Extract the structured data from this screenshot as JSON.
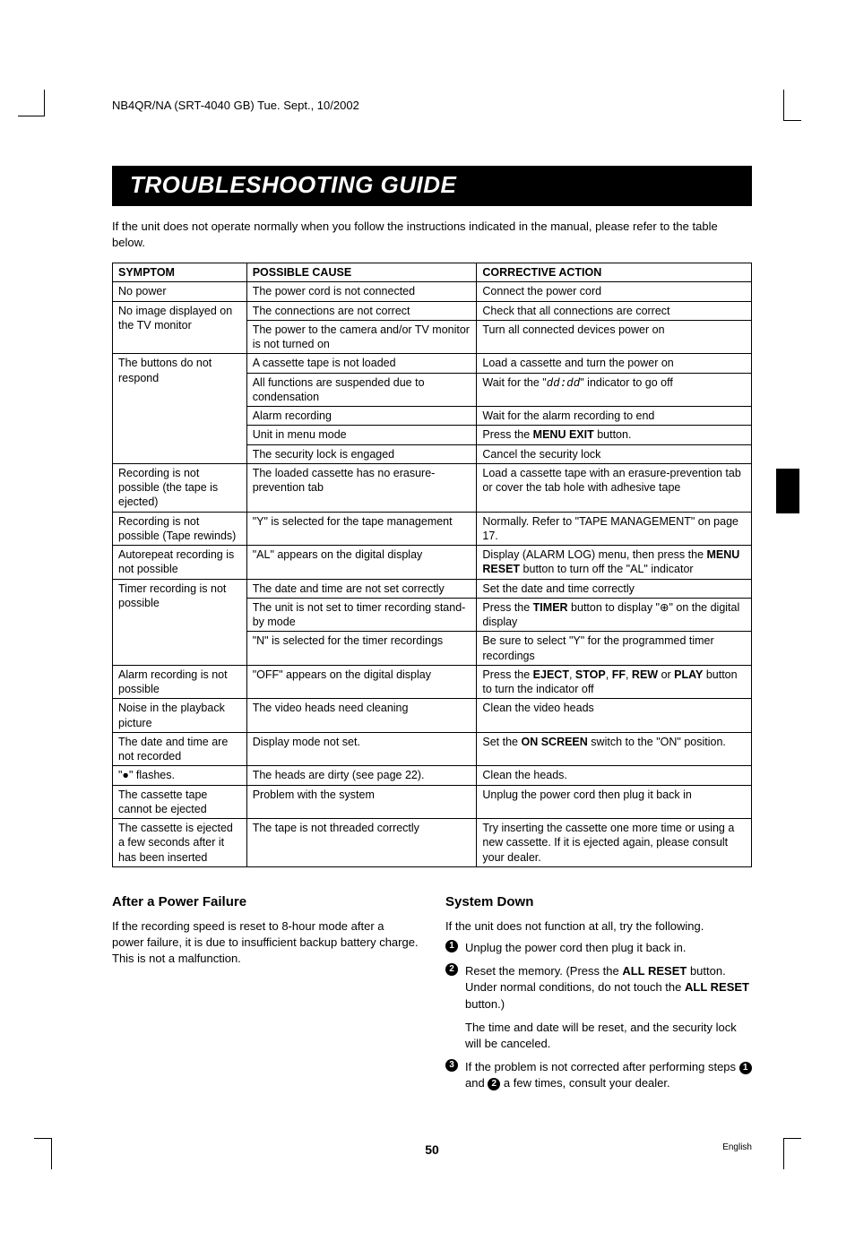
{
  "header_code": "NB4QR/NA (SRT-4040 GB)    Tue. Sept., 10/2002",
  "title": "TROUBLESHOOTING GUIDE",
  "intro": "If the unit does not operate normally when you follow the instructions indicated in the manual, please refer to the table below.",
  "table": {
    "headers": [
      "SYMPTOM",
      "POSSIBLE CAUSE",
      "CORRECTIVE ACTION"
    ],
    "groups": [
      {
        "symptom": "No power",
        "rows": [
          {
            "cause": "The power cord is not connected",
            "action": "Connect the power cord"
          }
        ]
      },
      {
        "symptom": "No image displayed on the TV monitor",
        "rows": [
          {
            "cause": "The connections are not correct",
            "action": "Check that all connections are correct"
          },
          {
            "cause": "The power to the camera and/or TV monitor is not turned on",
            "action": "Turn all connected devices power on"
          }
        ]
      },
      {
        "symptom": "The buttons do not respond",
        "rows": [
          {
            "cause": "A cassette tape is not loaded",
            "action": "Load a cassette and turn the power on"
          },
          {
            "cause": "All functions are suspended due to condensation",
            "action_html": "Wait for the \"<span class='clock-icon'>dd:dd</span>\" indicator to go off"
          },
          {
            "cause": "Alarm recording",
            "action": "Wait for the alarm recording to end"
          },
          {
            "cause": "Unit in menu mode",
            "action_html": "Press the <b>MENU EXIT</b> button."
          },
          {
            "cause": "The security lock is engaged",
            "action": "Cancel the security lock"
          }
        ]
      },
      {
        "symptom": "Recording is not possible (the tape is ejected)",
        "rows": [
          {
            "cause": "The loaded cassette has no erasure-prevention tab",
            "action": "Load a cassette tape with an erasure-prevention tab or cover the tab hole with adhesive tape"
          }
        ]
      },
      {
        "symptom": "Recording is not possible (Tape rewinds)",
        "rows": [
          {
            "cause": "\"Y\" is selected for the tape management",
            "action": "Normally. Refer to \"TAPE MANAGEMENT\" on page 17."
          }
        ]
      },
      {
        "symptom": "Autorepeat recording is not possible",
        "rows": [
          {
            "cause": "\"AL\" appears on the digital display",
            "action_html": "Display (ALARM LOG) menu, then press the <b>MENU RESET</b> button to turn off the \"AL\" indicator"
          }
        ]
      },
      {
        "symptom": "Timer recording is not possible",
        "rows": [
          {
            "cause": "The date and time are not set correctly",
            "action": "Set the date and time correctly"
          },
          {
            "cause": "The unit is not set to timer recording stand-by mode",
            "action_html": "Press the <b>TIMER</b> button to display \"⊕\" on the digital display"
          },
          {
            "cause": "\"N\" is selected for the timer recordings",
            "action": "Be sure to select \"Y\" for the programmed timer recordings"
          }
        ]
      },
      {
        "symptom": "Alarm recording is not possible",
        "rows": [
          {
            "cause": "\"OFF\" appears on the digital display",
            "action_html": "Press the <b>EJECT</b>, <b>STOP</b>, <b>FF</b>, <b>REW</b> or <b>PLAY</b> button to turn the indicator off"
          }
        ]
      },
      {
        "symptom": "Noise in the playback picture",
        "rows": [
          {
            "cause": "The video heads need cleaning",
            "action": "Clean the video heads"
          }
        ]
      },
      {
        "symptom": "The date and time are not recorded",
        "rows": [
          {
            "cause": "Display mode not set.",
            "action_html": "Set the <b>ON SCREEN</b> switch to the \"ON\" position."
          }
        ]
      },
      {
        "symptom": "\"●\" flashes.",
        "rows": [
          {
            "cause": "The heads are dirty (see page 22).",
            "action": "Clean the heads."
          }
        ]
      },
      {
        "symptom": "The cassette tape cannot be ejected",
        "rows": [
          {
            "cause": "Problem with the system",
            "action": "Unplug the power cord then plug it back in"
          }
        ]
      },
      {
        "symptom": "The cassette is ejected a few seconds after it has been inserted",
        "rows": [
          {
            "cause": "The tape is not threaded correctly",
            "action": "Try inserting the cassette one more time or using a new cassette. If it is ejected again, please consult your dealer."
          }
        ]
      }
    ]
  },
  "after_power": {
    "heading": "After a Power Failure",
    "body": "If the recording speed is reset to 8-hour mode after a power failure, it is due to insufficient backup battery charge. This is not a malfunction."
  },
  "system_down": {
    "heading": "System Down",
    "intro": "If the unit does not function at all, try the following.",
    "step1": "Unplug the power cord then plug it back in.",
    "step2_html": "Reset the memory. (Press the <b>ALL RESET</b> button. Under normal conditions, do not touch the <b>ALL RESET</b> button.)",
    "step2_note": "The time and date will be reset, and the security lock will be canceled.",
    "step3_pre": "If the problem is not corrected after performing steps ",
    "step3_mid": " and ",
    "step3_post": " a few times, consult your dealer."
  },
  "page_number": "50",
  "language_label": "English"
}
